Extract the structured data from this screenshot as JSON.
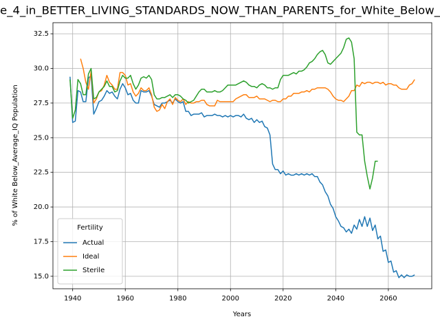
{
  "chart_data": {
    "type": "line",
    "title": "e_4_in_BETTER_LIVING_STANDARDS_NOW_THAN_PARENTS_for_White_Below_",
    "xlabel": "Years",
    "ylabel": "% of White Below_Average_IQ Population",
    "x": [
      1939,
      1940,
      1941,
      1942,
      1943,
      1944,
      1945,
      1946,
      1947,
      1948,
      1949,
      1950,
      1951,
      1952,
      1953,
      1954,
      1955,
      1956,
      1957,
      1958,
      1959,
      1960,
      1961,
      1962,
      1963,
      1964,
      1965,
      1966,
      1967,
      1968,
      1969,
      1970,
      1971,
      1972,
      1973,
      1974,
      1975,
      1976,
      1977,
      1978,
      1979,
      1980,
      1981,
      1982,
      1983,
      1984,
      1985,
      1986,
      1987,
      1988,
      1989,
      1990,
      1991,
      1992,
      1993,
      1994,
      1995,
      1996,
      1997,
      1998,
      1999,
      2000,
      2001,
      2002,
      2003,
      2004,
      2005,
      2006,
      2007,
      2008,
      2009,
      2010,
      2011,
      2012,
      2013,
      2014,
      2015,
      2016,
      2017,
      2018,
      2019,
      2020,
      2021,
      2022,
      2023,
      2024,
      2025,
      2026,
      2027,
      2028,
      2029,
      2030,
      2031,
      2032,
      2033,
      2034,
      2035,
      2036,
      2037,
      2038,
      2039,
      2040,
      2041,
      2042,
      2043,
      2044,
      2045,
      2046,
      2047,
      2048,
      2049,
      2050,
      2051,
      2052,
      2053,
      2054,
      2055,
      2056,
      2057,
      2058,
      2059,
      2060,
      2061,
      2062,
      2063,
      2064,
      2065,
      2066,
      2067,
      2068,
      2069,
      2070
    ],
    "series": [
      {
        "name": "Actual",
        "color": "#1f77b4",
        "values": [
          29.4,
          26.1,
          26.2,
          28.4,
          28.3,
          27.6,
          27.6,
          29.3,
          29.5,
          26.7,
          27.1,
          27.6,
          27.7,
          28.0,
          28.4,
          28.2,
          28.3,
          28.0,
          27.8,
          28.5,
          28.9,
          28.6,
          28.1,
          28.2,
          27.7,
          27.5,
          27.5,
          28.4,
          28.3,
          28.3,
          28.4,
          28.0,
          27.4,
          27.3,
          27.2,
          27.5,
          27.5,
          27.6,
          27.7,
          27.5,
          27.8,
          27.6,
          27.5,
          27.6,
          26.9,
          26.9,
          26.6,
          26.7,
          26.7,
          26.7,
          26.8,
          26.5,
          26.6,
          26.6,
          26.6,
          26.7,
          26.6,
          26.6,
          26.5,
          26.6,
          26.5,
          26.6,
          26.5,
          26.6,
          26.6,
          26.5,
          26.7,
          26.4,
          26.3,
          26.4,
          26.1,
          26.3,
          26.1,
          26.2,
          25.8,
          25.7,
          25.2,
          23.1,
          22.7,
          22.7,
          22.4,
          22.6,
          22.3,
          22.4,
          22.3,
          22.3,
          22.4,
          22.3,
          22.4,
          22.3,
          22.4,
          22.3,
          22.4,
          22.2,
          22.2,
          21.8,
          21.6,
          21.1,
          20.8,
          20.2,
          19.9,
          19.3,
          19.0,
          18.6,
          18.5,
          18.2,
          18.4,
          18.1,
          18.7,
          18.4,
          19.1,
          18.6,
          19.3,
          18.6,
          19.2,
          18.3,
          18.7,
          17.7,
          17.9,
          16.8,
          16.9,
          16.0,
          16.1,
          15.3,
          15.4,
          14.9,
          15.1,
          14.9,
          15.1,
          15.0,
          15.0,
          15.1
        ]
      },
      {
        "name": "Ideal",
        "color": "#ff7f0e",
        "values": [
          null,
          null,
          null,
          null,
          30.7,
          30.0,
          29.0,
          28.5,
          29.8,
          27.5,
          27.8,
          28.3,
          28.4,
          28.8,
          29.5,
          29.0,
          28.8,
          28.5,
          28.5,
          29.7,
          29.7,
          29.5,
          28.8,
          28.9,
          28.3,
          28.0,
          28.2,
          28.6,
          28.4,
          28.4,
          28.6,
          28.1,
          27.2,
          26.9,
          27.0,
          27.4,
          27.1,
          27.6,
          27.8,
          27.4,
          27.9,
          27.7,
          27.6,
          27.8,
          27.4,
          27.6,
          27.5,
          27.5,
          27.6,
          27.6,
          27.7,
          27.7,
          27.4,
          27.3,
          27.3,
          27.3,
          27.7,
          27.6,
          27.6,
          27.6,
          27.6,
          27.6,
          27.6,
          27.8,
          27.9,
          28.0,
          28.1,
          28.1,
          27.9,
          27.9,
          27.9,
          28.0,
          27.8,
          27.8,
          27.8,
          27.7,
          27.6,
          27.7,
          27.7,
          27.6,
          27.6,
          27.8,
          27.8,
          28.0,
          28.0,
          28.2,
          28.2,
          28.2,
          28.3,
          28.3,
          28.4,
          28.3,
          28.5,
          28.5,
          28.6,
          28.6,
          28.6,
          28.6,
          28.5,
          28.3,
          28.0,
          27.8,
          27.7,
          27.7,
          27.6,
          27.8,
          28.0,
          28.4,
          28.4,
          28.8,
          28.7,
          29.0,
          28.9,
          29.0,
          29.0,
          28.9,
          29.0,
          29.0,
          28.9,
          29.0,
          28.8,
          28.9,
          28.9,
          28.8,
          28.8,
          28.6,
          28.5,
          28.5,
          28.5,
          28.8,
          28.9,
          29.2
        ]
      },
      {
        "name": "Sterile",
        "color": "#2ca02c",
        "values": [
          29.2,
          26.4,
          27.0,
          29.2,
          28.9,
          28.1,
          28.1,
          29.6,
          30.0,
          27.8,
          27.9,
          28.3,
          28.5,
          28.7,
          29.1,
          28.7,
          28.7,
          28.3,
          28.4,
          29.1,
          29.5,
          29.3,
          29.3,
          29.5,
          28.9,
          28.5,
          28.8,
          29.3,
          29.4,
          29.3,
          29.5,
          29.2,
          28.1,
          27.8,
          27.8,
          27.9,
          27.9,
          28.0,
          28.1,
          27.9,
          28.1,
          28.1,
          28.0,
          27.8,
          27.7,
          27.5,
          27.6,
          27.7,
          28.0,
          28.3,
          28.5,
          28.5,
          28.3,
          28.3,
          28.3,
          28.4,
          28.3,
          28.3,
          28.4,
          28.6,
          28.8,
          28.8,
          28.8,
          28.8,
          28.9,
          29.0,
          29.1,
          29.0,
          28.8,
          28.7,
          28.7,
          28.6,
          28.8,
          28.9,
          28.8,
          28.6,
          28.6,
          28.5,
          28.6,
          28.6,
          29.2,
          29.5,
          29.5,
          29.5,
          29.6,
          29.7,
          29.6,
          29.8,
          29.8,
          29.9,
          30.1,
          30.4,
          30.5,
          30.7,
          31.0,
          31.2,
          31.3,
          31.0,
          30.4,
          30.3,
          30.5,
          30.7,
          30.9,
          31.1,
          31.5,
          32.1,
          32.2,
          31.9,
          30.7,
          25.4,
          25.2,
          25.2,
          23.3,
          22.2,
          21.3,
          22.1,
          23.3,
          23.3,
          null,
          null,
          null,
          null,
          null,
          null,
          null,
          null,
          null,
          null,
          null,
          null,
          null,
          null
        ]
      }
    ],
    "xlim": [
      1932.5,
      2076.5
    ],
    "ylim": [
      14.1,
      33.3
    ],
    "xticks": [
      1940,
      1960,
      1980,
      2000,
      2020,
      2040,
      2060
    ],
    "yticks": [
      {
        "value": 15,
        "label": "15.0"
      },
      17.5,
      {
        "value": 20,
        "label": "20.0"
      },
      22.5,
      {
        "value": 25,
        "label": "25.0"
      },
      27.5,
      {
        "value": 30,
        "label": "30.0"
      },
      32.5
    ],
    "grid": true,
    "legend_title": "Fertility",
    "legend_position": "lower left"
  }
}
